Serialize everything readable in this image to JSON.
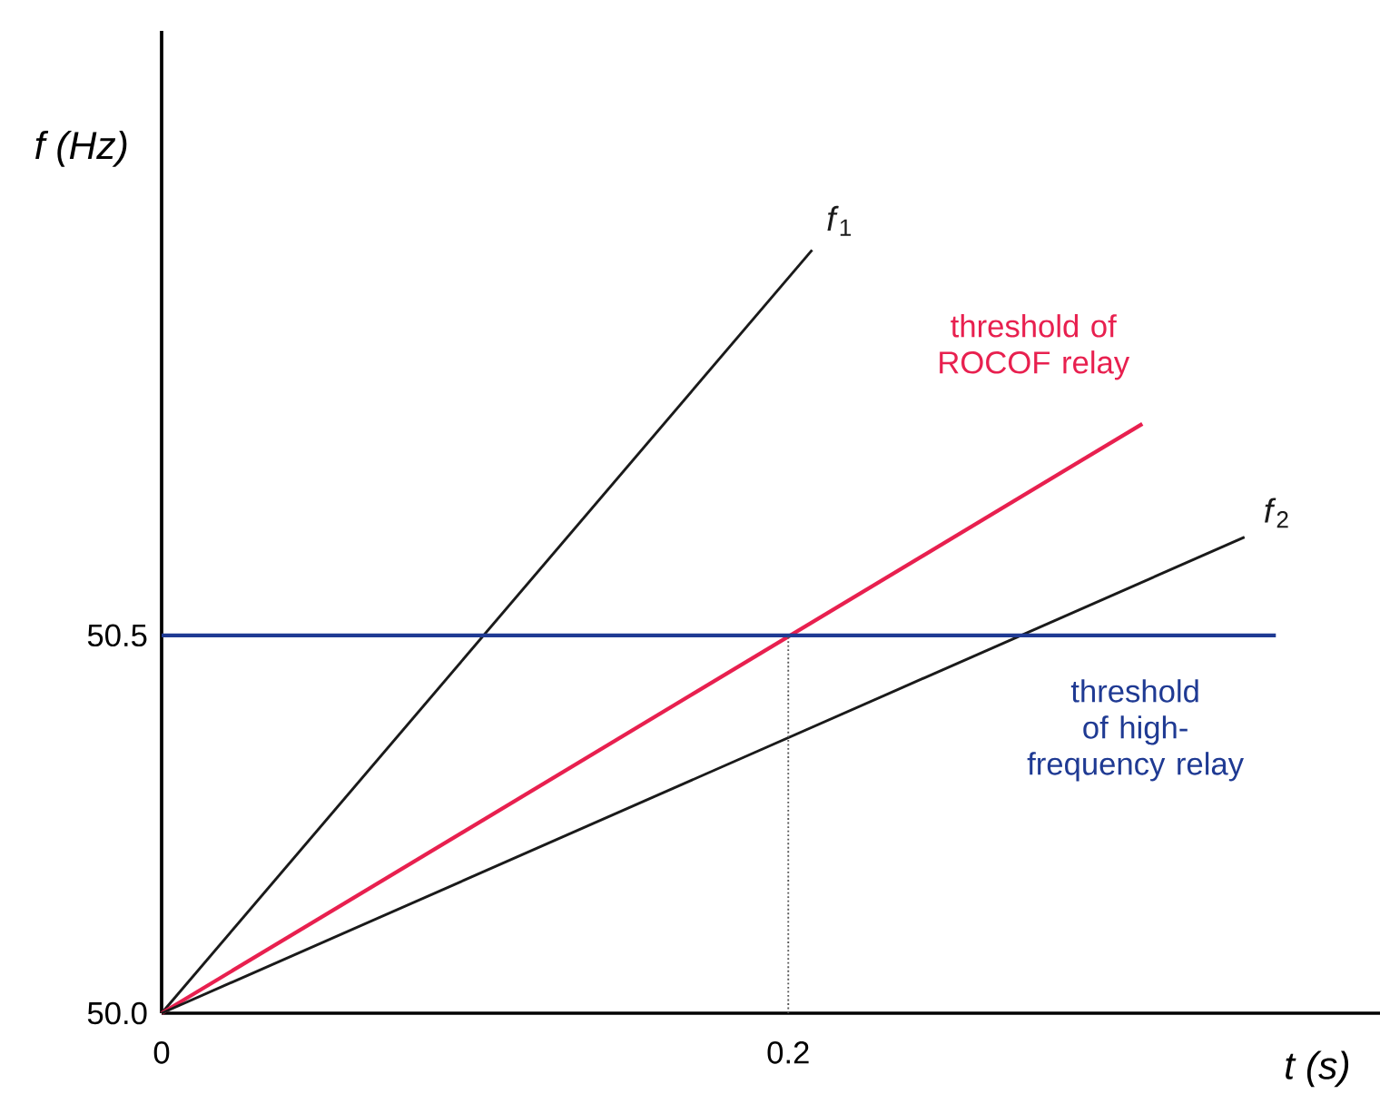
{
  "chart_data": {
    "type": "line",
    "xlabel": "t (s)",
    "ylabel": "f (Hz)",
    "xlim": [
      0,
      0.39
    ],
    "ylim": [
      50,
      51.3
    ],
    "xticks": [
      0,
      0.2
    ],
    "yticks": [
      {
        "value": 50,
        "label": "50.0"
      },
      50.5
    ],
    "grid": false,
    "legend": false,
    "marker": "none",
    "series": [
      {
        "name": "*f*$_{1}$",
        "color": "#1a1a1a",
        "x": [
          0,
          0.2076
        ],
        "values": [
          50,
          51.01
        ]
      },
      {
        "name": "threshold of ROCOF relay",
        "color": "#e8204f",
        "x": [
          0,
          0.313
        ],
        "values": [
          50,
          50.78
        ]
      },
      {
        "name": "*f*$_{2}$",
        "color": "#1a1a1a",
        "x": [
          0,
          0.3456
        ],
        "values": [
          50,
          50.63
        ]
      },
      {
        "name": "threshold of high-frequency relay",
        "color": "#1f3a93",
        "x": [
          0,
          0.3556
        ],
        "values": [
          50.5,
          50.5
        ]
      },
      {
        "color": "#555555",
        "line_style": "dotted",
        "x": [
          0.2,
          0.2
        ],
        "values": [
          50,
          50.5
        ]
      }
    ]
  }
}
